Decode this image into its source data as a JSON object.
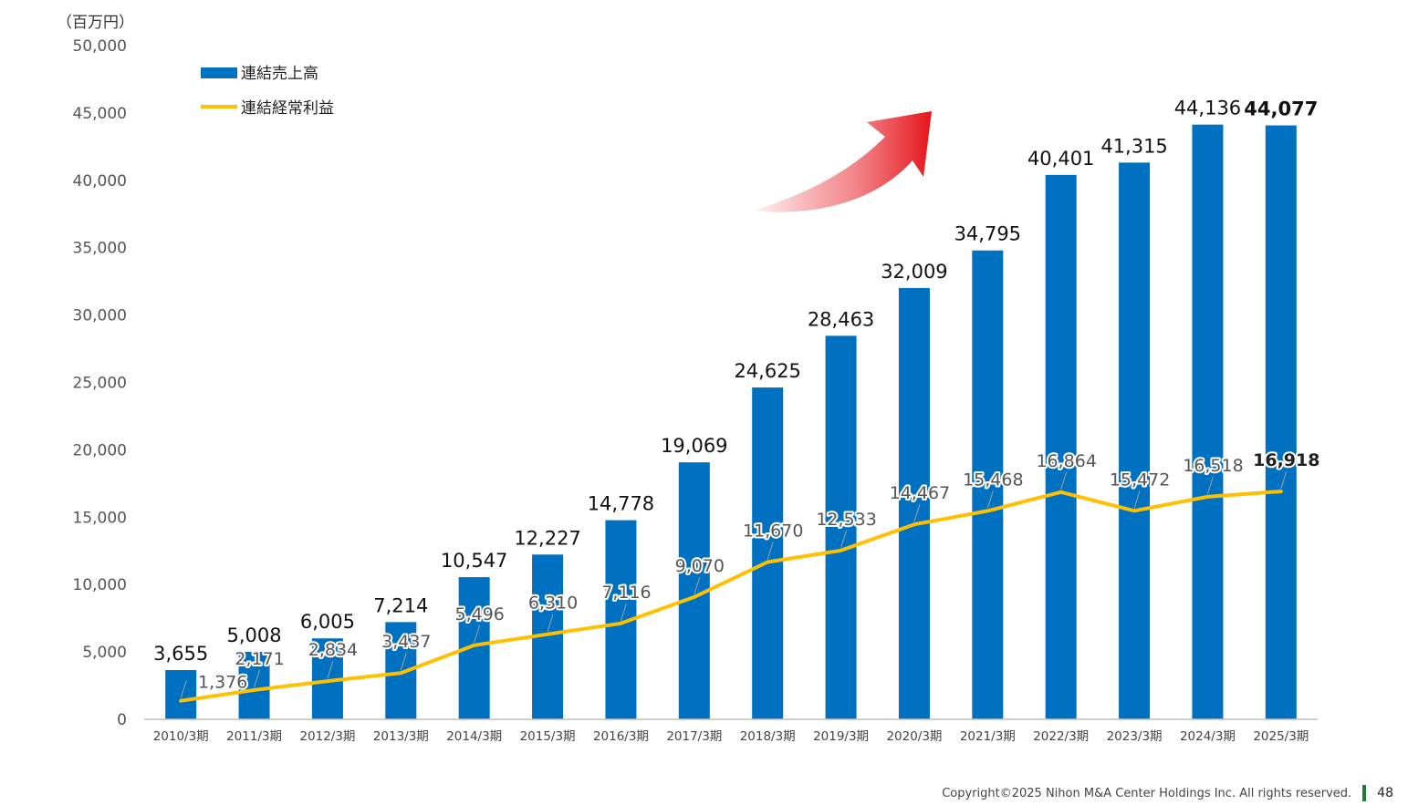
{
  "chart_data": {
    "type": "bar",
    "unit_label": "（百万円）",
    "categories": [
      "2010/3期",
      "2011/3期",
      "2012/3期",
      "2013/3期",
      "2014/3期",
      "2015/3期",
      "2016/3期",
      "2017/3期",
      "2018/3期",
      "2019/3期",
      "2020/3期",
      "2021/3期",
      "2022/3期",
      "2023/3期",
      "2024/3期",
      "2025/3期"
    ],
    "series": [
      {
        "name": "連結売上高",
        "type": "bar",
        "color": "#0070c0",
        "values": [
          3655,
          5008,
          6005,
          7214,
          10547,
          12227,
          14778,
          19069,
          24625,
          28463,
          32009,
          34795,
          40401,
          41315,
          44136,
          44077
        ],
        "labels": [
          "3,655",
          "5,008",
          "6,005",
          "7,214",
          "10,547",
          "12,227",
          "14,778",
          "19,069",
          "24,625",
          "28,463",
          "32,009",
          "34,795",
          "40,401",
          "41,315",
          "44,136",
          "44,077"
        ]
      },
      {
        "name": "連結経常利益",
        "type": "line",
        "color": "#ffc000",
        "values": [
          1376,
          2171,
          2834,
          3437,
          5496,
          6310,
          7116,
          9070,
          11670,
          12533,
          14467,
          15468,
          16864,
          15472,
          16518,
          16918
        ],
        "labels": [
          "1,376",
          "2,171",
          "2,834",
          "3,437",
          "5,496",
          "6,310",
          "7,116",
          "9,070",
          "11,670",
          "12,533",
          "14,467",
          "15,468",
          "16,864",
          "15,472",
          "16,518",
          "16,918"
        ]
      }
    ],
    "ylim": [
      0,
      50000
    ],
    "yticks": [
      0,
      5000,
      10000,
      15000,
      20000,
      25000,
      30000,
      35000,
      40000,
      45000,
      50000
    ],
    "ytick_labels": [
      "0",
      "5,000",
      "10,000",
      "15,000",
      "20,000",
      "25,000",
      "30,000",
      "35,000",
      "40,000",
      "45,000",
      "50,000"
    ],
    "legend": "top-left",
    "grid": false,
    "annotation": "red curved up-arrow"
  },
  "footer": {
    "copyright": "Copyright©2025 Nihon M&A Center Holdings Inc. All rights reserved.",
    "page": "48"
  }
}
